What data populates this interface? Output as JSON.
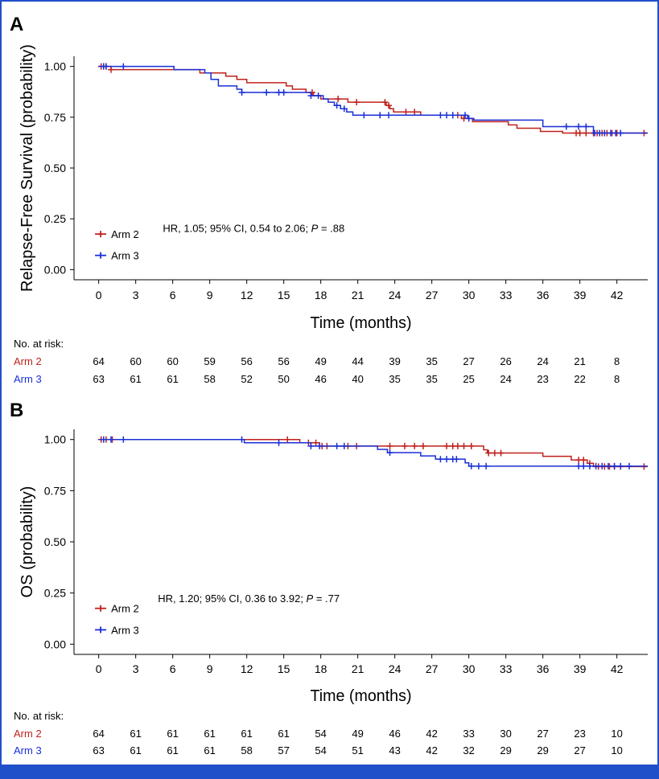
{
  "colors": {
    "arm2": "#c0201c",
    "arm3": "#1a2fd6",
    "frame": "#1f4fc9"
  },
  "risk_header": "No. at risk:",
  "chart_data": [
    {
      "panel": "A",
      "type": "line",
      "subtype": "kaplan-meier",
      "ylabel": "Relapse-Free Survival (probability)",
      "xlabel": "Time (months)",
      "xlim": [
        -2,
        44.5
      ],
      "ylim": [
        -0.05,
        1.05
      ],
      "xticks": [
        0,
        3,
        6,
        9,
        12,
        15,
        18,
        21,
        24,
        27,
        30,
        33,
        36,
        39,
        42
      ],
      "yticks": [
        {
          "v": 0,
          "label": "0.00"
        },
        {
          "v": 0.25,
          "label": "0.25"
        },
        {
          "v": 0.5,
          "label": "0.50"
        },
        {
          "v": 0.75,
          "label": "0.75"
        },
        {
          "v": 1,
          "label": "1.00"
        }
      ],
      "annotation": {
        "pre": "HR, 1.05; 95% CI, 0.54 to 2.06; ",
        "p": "P",
        "post": " = .88",
        "x": 5.2,
        "y": 0.205
      },
      "legend": {
        "x": -0.3,
        "y": 0.175,
        "dy": 0.105
      },
      "series": [
        {
          "name": "Arm 2",
          "color_key": "arm2",
          "steps": [
            [
              0,
              1.0
            ],
            [
              1.0,
              0.984
            ],
            [
              8.2,
              0.968
            ],
            [
              10.3,
              0.952
            ],
            [
              11.2,
              0.936
            ],
            [
              12.0,
              0.92
            ],
            [
              15.2,
              0.904
            ],
            [
              15.7,
              0.888
            ],
            [
              16.8,
              0.872
            ],
            [
              17.4,
              0.856
            ],
            [
              18.0,
              0.84
            ],
            [
              20.2,
              0.824
            ],
            [
              23.3,
              0.808
            ],
            [
              23.6,
              0.792
            ],
            [
              23.9,
              0.776
            ],
            [
              26.1,
              0.76
            ],
            [
              29.4,
              0.744
            ],
            [
              30.3,
              0.728
            ],
            [
              33.2,
              0.712
            ],
            [
              33.9,
              0.696
            ],
            [
              35.8,
              0.68
            ],
            [
              37.6,
              0.672
            ],
            [
              44.5,
              0.672
            ]
          ],
          "censor": [
            0.2,
            0.4,
            0.6,
            1.0,
            17.3,
            19.4,
            20.9,
            23.2,
            23.5,
            24.9,
            25.6,
            28.7,
            29.1,
            29.6,
            38.7,
            39.0,
            39.5,
            40.1,
            40.4,
            40.8,
            41.2,
            41.6,
            42.0,
            42.3,
            44.2
          ]
        },
        {
          "name": "Arm 3",
          "color_key": "arm3",
          "steps": [
            [
              0,
              1.0
            ],
            [
              6.1,
              0.984
            ],
            [
              8.6,
              0.968
            ],
            [
              9.1,
              0.936
            ],
            [
              9.7,
              0.904
            ],
            [
              11.2,
              0.888
            ],
            [
              11.6,
              0.872
            ],
            [
              17.2,
              0.856
            ],
            [
              18.2,
              0.84
            ],
            [
              18.6,
              0.824
            ],
            [
              19.1,
              0.808
            ],
            [
              19.6,
              0.792
            ],
            [
              20.1,
              0.776
            ],
            [
              20.6,
              0.76
            ],
            [
              29.9,
              0.744
            ],
            [
              30.4,
              0.736
            ],
            [
              36.0,
              0.704
            ],
            [
              40.1,
              0.672
            ],
            [
              44.5,
              0.672
            ]
          ],
          "censor": [
            0.4,
            0.6,
            2.0,
            11.6,
            13.6,
            14.6,
            15.0,
            17.2,
            17.8,
            19.3,
            19.9,
            21.5,
            22.8,
            23.5,
            27.7,
            28.2,
            28.7,
            29.7,
            30.0,
            37.9,
            38.9,
            39.5,
            40.2,
            40.6,
            41.0,
            41.5,
            41.9,
            42.3
          ]
        }
      ],
      "at_risk": {
        "times": [
          0,
          3,
          6,
          9,
          12,
          15,
          18,
          21,
          24,
          27,
          30,
          33,
          36,
          39,
          42
        ],
        "rows": [
          {
            "label": "Arm 2",
            "color_key": "arm2",
            "values": [
              64,
              60,
              60,
              59,
              56,
              56,
              49,
              44,
              39,
              35,
              27,
              26,
              24,
              21,
              8
            ]
          },
          {
            "label": "Arm 3",
            "color_key": "arm3",
            "values": [
              63,
              61,
              61,
              58,
              52,
              50,
              46,
              40,
              35,
              35,
              25,
              24,
              23,
              22,
              8
            ]
          }
        ]
      }
    },
    {
      "panel": "B",
      "type": "line",
      "subtype": "kaplan-meier",
      "ylabel": "OS (probability)",
      "xlabel": "Time (months)",
      "xlim": [
        -2,
        44.5
      ],
      "ylim": [
        -0.05,
        1.05
      ],
      "xticks": [
        0,
        3,
        6,
        9,
        12,
        15,
        18,
        21,
        24,
        27,
        30,
        33,
        36,
        39,
        42
      ],
      "yticks": [
        {
          "v": 0,
          "label": "0.00"
        },
        {
          "v": 0.25,
          "label": "0.25"
        },
        {
          "v": 0.5,
          "label": "0.50"
        },
        {
          "v": 0.75,
          "label": "0.75"
        },
        {
          "v": 1,
          "label": "1.00"
        }
      ],
      "annotation": {
        "pre": "HR, 1.20; 95% CI, 0.36 to 3.92; ",
        "p": "P",
        "post": " = .77",
        "x": 4.8,
        "y": 0.225
      },
      "legend": {
        "x": -0.3,
        "y": 0.175,
        "dy": 0.105
      },
      "series": [
        {
          "name": "Arm 2",
          "color_key": "arm2",
          "steps": [
            [
              0,
              1.0
            ],
            [
              16.3,
              0.984
            ],
            [
              17.9,
              0.968
            ],
            [
              31.2,
              0.95
            ],
            [
              31.5,
              0.934
            ],
            [
              36.0,
              0.918
            ],
            [
              38.3,
              0.9
            ],
            [
              39.6,
              0.884
            ],
            [
              40.1,
              0.868
            ],
            [
              44.5,
              0.868
            ]
          ],
          "censor": [
            0.2,
            0.6,
            1.1,
            15.3,
            17.0,
            17.6,
            18.1,
            18.5,
            20.2,
            20.9,
            23.6,
            24.8,
            25.6,
            26.3,
            28.2,
            28.7,
            29.1,
            29.6,
            30.2,
            31.6,
            32.1,
            32.6,
            38.9,
            39.3,
            39.8,
            40.5,
            41.0,
            41.4,
            41.8,
            42.3,
            44.2
          ]
        },
        {
          "name": "Arm 3",
          "color_key": "arm3",
          "steps": [
            [
              0,
              1.0
            ],
            [
              11.8,
              0.984
            ],
            [
              17.2,
              0.968
            ],
            [
              22.6,
              0.952
            ],
            [
              23.4,
              0.936
            ],
            [
              26.1,
              0.92
            ],
            [
              27.3,
              0.904
            ],
            [
              29.7,
              0.886
            ],
            [
              30.0,
              0.87
            ],
            [
              44.5,
              0.87
            ]
          ],
          "censor": [
            0.4,
            1.0,
            2.0,
            11.6,
            14.6,
            17.2,
            17.9,
            19.3,
            19.9,
            23.6,
            27.7,
            28.2,
            28.7,
            29.0,
            30.2,
            30.8,
            31.4,
            38.9,
            39.3,
            39.8,
            40.3,
            40.8,
            41.3,
            41.8,
            42.3,
            43.0
          ]
        }
      ],
      "at_risk": {
        "times": [
          0,
          3,
          6,
          9,
          12,
          15,
          18,
          21,
          24,
          27,
          30,
          33,
          36,
          39,
          42
        ],
        "rows": [
          {
            "label": "Arm 2",
            "color_key": "arm2",
            "values": [
              64,
              61,
              61,
              61,
              61,
              61,
              54,
              49,
              46,
              42,
              33,
              30,
              27,
              23,
              10
            ]
          },
          {
            "label": "Arm 3",
            "color_key": "arm3",
            "values": [
              63,
              61,
              61,
              61,
              58,
              57,
              54,
              51,
              43,
              42,
              32,
              29,
              29,
              27,
              10
            ]
          }
        ]
      }
    }
  ]
}
